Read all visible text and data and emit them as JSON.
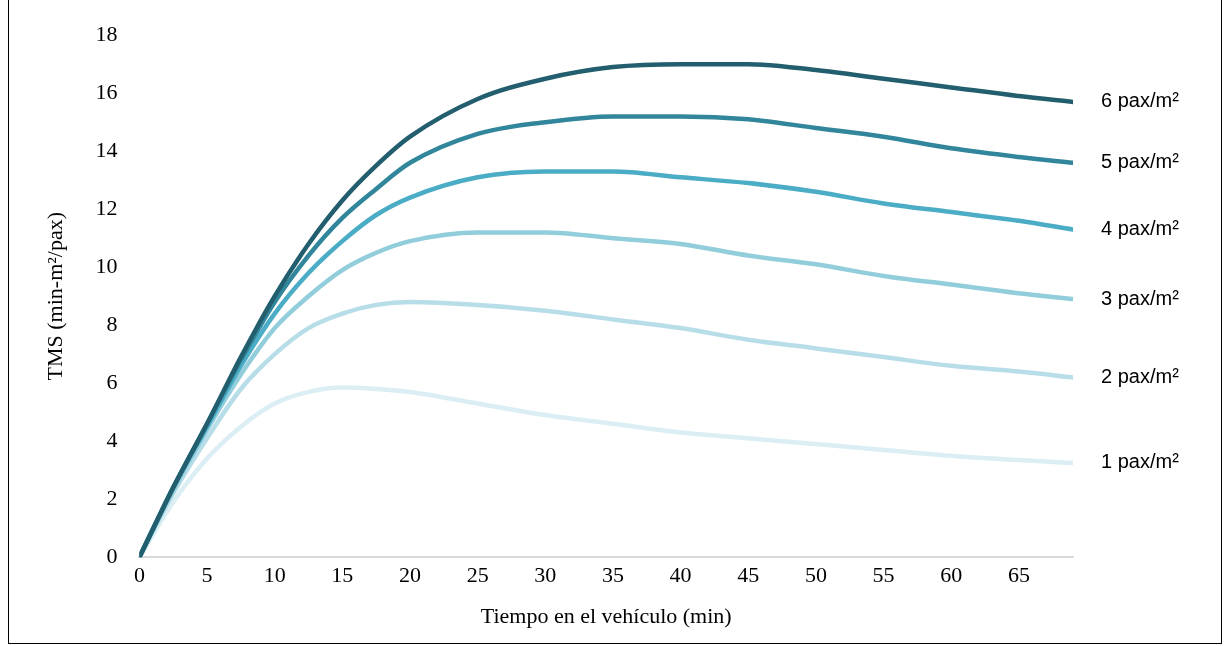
{
  "chart_data": {
    "type": "line",
    "xlabel": "Tiempo en el vehículo (min)",
    "ylabel": "TMS (min-m²/pax)",
    "x": [
      0,
      2.5,
      5,
      7.5,
      10,
      12.5,
      15,
      17.5,
      20,
      25,
      30,
      35,
      40,
      45,
      50,
      55,
      60,
      65,
      69
    ],
    "xlim": [
      0,
      69
    ],
    "xticks": [
      0,
      5,
      10,
      15,
      20,
      25,
      30,
      35,
      40,
      45,
      50,
      55,
      60,
      65
    ],
    "ylim": [
      0,
      18
    ],
    "yticks": [
      0,
      2,
      4,
      6,
      8,
      10,
      12,
      14,
      16,
      18
    ],
    "grid": false,
    "legend": false,
    "marker": "none",
    "line_style": "solid",
    "series": [
      {
        "name": "1 pax/m²",
        "color": "#daeef3",
        "values": [
          0,
          1.9,
          3.4,
          4.5,
          5.3,
          5.7,
          5.85,
          5.8,
          5.7,
          5.3,
          4.9,
          4.6,
          4.3,
          4.1,
          3.9,
          3.7,
          3.5,
          3.35,
          3.25
        ]
      },
      {
        "name": "2 pax/m²",
        "color": "#b7dee8",
        "values": [
          0,
          2.2,
          4.1,
          5.8,
          7.0,
          7.9,
          8.4,
          8.7,
          8.8,
          8.7,
          8.5,
          8.2,
          7.9,
          7.5,
          7.2,
          6.9,
          6.6,
          6.4,
          6.2
        ]
      },
      {
        "name": "3 pax/m²",
        "color": "#92cddc",
        "values": [
          0,
          2.3,
          4.4,
          6.3,
          7.9,
          9.0,
          9.9,
          10.5,
          10.9,
          11.2,
          11.2,
          11.0,
          10.8,
          10.4,
          10.1,
          9.7,
          9.4,
          9.1,
          8.9
        ]
      },
      {
        "name": "4 pax/m²",
        "color": "#4bacc6",
        "values": [
          0,
          2.4,
          4.5,
          6.6,
          8.4,
          9.8,
          10.9,
          11.8,
          12.4,
          13.1,
          13.3,
          13.3,
          13.1,
          12.9,
          12.6,
          12.2,
          11.9,
          11.6,
          11.3
        ]
      },
      {
        "name": "5 pax/m²",
        "color": "#31869b",
        "values": [
          0,
          2.4,
          4.6,
          6.8,
          8.8,
          10.4,
          11.7,
          12.7,
          13.6,
          14.6,
          15.0,
          15.2,
          15.2,
          15.1,
          14.8,
          14.5,
          14.1,
          13.8,
          13.6
        ]
      },
      {
        "name": "6 pax/m²",
        "color": "#235e6e",
        "values": [
          0,
          2.4,
          4.6,
          6.9,
          9.0,
          10.8,
          12.3,
          13.5,
          14.5,
          15.8,
          16.5,
          16.9,
          17.0,
          17.0,
          16.8,
          16.5,
          16.2,
          15.9,
          15.7
        ]
      }
    ]
  }
}
